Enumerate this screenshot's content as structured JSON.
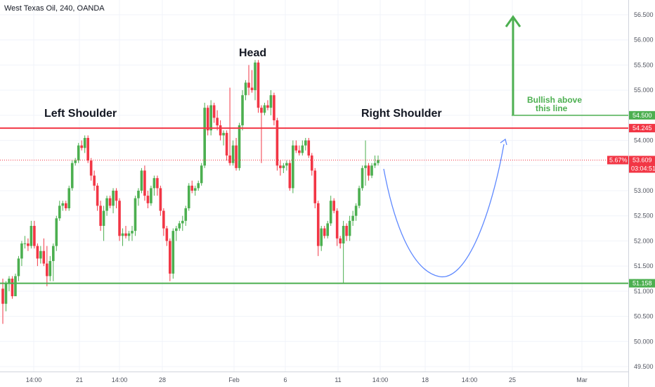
{
  "chart_data": {
    "type": "candlestick",
    "title": "West Texas Oil, 240, OANDA",
    "y_ticks": [
      "49.500",
      "50.000",
      "50.500",
      "51.000",
      "51.500",
      "52.000",
      "52.500",
      "53.000",
      "53.500",
      "54.000",
      "54.500",
      "55.000",
      "55.500",
      "56.000",
      "56.500"
    ],
    "ylim": [
      49.4,
      56.7
    ],
    "x_ticks": [
      "14:00",
      "21",
      "14:00",
      "28",
      "Feb",
      "6",
      "11",
      "14:00",
      "18",
      "14:00",
      "25",
      "Mar"
    ],
    "levels": {
      "target": {
        "value": 54.5,
        "label": "54.500",
        "color": "#4caf50"
      },
      "neckline": {
        "value": 54.245,
        "label": "54.245",
        "color": "#f23645"
      },
      "support": {
        "value": 51.158,
        "label": "51.158",
        "color": "#4caf50"
      }
    },
    "last_price": {
      "value": 53.609,
      "label": "53.609",
      "change": "5.67%",
      "countdown": "03:04:51",
      "color": "#f23645"
    },
    "annotations": {
      "left_shoulder": "Left Shoulder",
      "head": "Head",
      "right_shoulder": "Right Shoulder",
      "bullish_line1": "Bullish above",
      "bullish_line2": "this line"
    },
    "up_color": "#4caf50",
    "down_color": "#f23645",
    "series": [
      [
        51.05,
        51.25,
        50.35,
        50.75
      ],
      [
        50.75,
        51.2,
        50.6,
        51.15
      ],
      [
        51.15,
        51.3,
        51.0,
        51.25
      ],
      [
        51.25,
        51.3,
        50.85,
        50.9
      ],
      [
        50.9,
        51.35,
        50.9,
        51.3
      ],
      [
        51.3,
        51.7,
        51.2,
        51.65
      ],
      [
        51.65,
        52.0,
        51.5,
        51.95
      ],
      [
        51.95,
        52.1,
        51.85,
        51.95
      ],
      [
        51.95,
        52.05,
        51.8,
        51.9
      ],
      [
        51.9,
        52.4,
        51.85,
        52.3
      ],
      [
        52.3,
        52.4,
        51.85,
        51.9
      ],
      [
        51.9,
        51.95,
        51.5,
        51.65
      ],
      [
        51.65,
        51.9,
        51.55,
        51.8
      ],
      [
        51.8,
        52.05,
        51.5,
        51.55
      ],
      [
        51.55,
        51.9,
        51.1,
        51.3
      ],
      [
        51.3,
        51.7,
        51.2,
        51.6
      ],
      [
        51.6,
        51.95,
        51.2,
        51.9
      ],
      [
        51.9,
        52.5,
        51.8,
        52.45
      ],
      [
        52.45,
        52.8,
        52.4,
        52.7
      ],
      [
        52.7,
        52.8,
        52.6,
        52.75
      ],
      [
        52.75,
        52.8,
        52.6,
        52.65
      ],
      [
        52.65,
        53.1,
        52.6,
        53.05
      ],
      [
        53.05,
        53.6,
        53.0,
        53.55
      ],
      [
        53.55,
        53.65,
        53.5,
        53.6
      ],
      [
        53.6,
        53.95,
        53.55,
        53.9
      ],
      [
        53.9,
        54.0,
        53.8,
        53.85
      ],
      [
        53.85,
        54.1,
        53.75,
        54.05
      ],
      [
        54.05,
        54.1,
        53.55,
        53.6
      ],
      [
        53.6,
        53.65,
        53.2,
        53.3
      ],
      [
        53.3,
        53.4,
        53.0,
        53.1
      ],
      [
        53.1,
        53.15,
        52.6,
        52.7
      ],
      [
        52.7,
        52.8,
        52.2,
        52.3
      ],
      [
        52.3,
        52.7,
        52.0,
        52.6
      ],
      [
        52.6,
        52.9,
        52.5,
        52.85
      ],
      [
        52.85,
        52.9,
        52.65,
        52.7
      ],
      [
        52.7,
        53.05,
        52.55,
        53.0
      ],
      [
        53.0,
        53.05,
        52.65,
        52.8
      ],
      [
        52.8,
        52.85,
        52.0,
        52.1
      ],
      [
        52.1,
        52.25,
        51.9,
        52.15
      ],
      [
        52.15,
        52.3,
        52.05,
        52.1
      ],
      [
        52.1,
        52.2,
        52.0,
        52.15
      ],
      [
        52.15,
        52.3,
        52.0,
        52.2
      ],
      [
        52.2,
        52.9,
        52.1,
        52.85
      ],
      [
        52.85,
        53.05,
        52.7,
        53.0
      ],
      [
        53.0,
        53.45,
        52.95,
        53.4
      ],
      [
        53.4,
        53.5,
        52.8,
        52.9
      ],
      [
        52.9,
        53.0,
        52.65,
        52.75
      ],
      [
        52.75,
        53.1,
        52.7,
        53.05
      ],
      [
        53.05,
        53.3,
        52.9,
        53.25
      ],
      [
        53.25,
        53.3,
        52.9,
        53.05
      ],
      [
        53.05,
        53.1,
        52.5,
        52.6
      ],
      [
        52.6,
        52.65,
        52.1,
        52.25
      ],
      [
        52.25,
        52.3,
        51.9,
        52.0
      ],
      [
        52.0,
        52.05,
        51.2,
        51.35
      ],
      [
        51.35,
        52.25,
        51.25,
        52.2
      ],
      [
        52.2,
        52.3,
        52.0,
        52.25
      ],
      [
        52.25,
        52.4,
        52.2,
        52.35
      ],
      [
        52.35,
        52.5,
        52.2,
        52.4
      ],
      [
        52.4,
        52.7,
        52.3,
        52.65
      ],
      [
        52.65,
        53.15,
        52.6,
        53.1
      ],
      [
        53.1,
        53.2,
        52.95,
        53.0
      ],
      [
        53.0,
        53.1,
        52.9,
        53.05
      ],
      [
        53.05,
        53.2,
        53.0,
        53.15
      ],
      [
        53.15,
        53.55,
        53.1,
        53.5
      ],
      [
        53.5,
        54.75,
        53.45,
        54.65
      ],
      [
        54.65,
        54.7,
        54.1,
        54.2
      ],
      [
        54.2,
        54.8,
        54.1,
        54.7
      ],
      [
        54.7,
        54.75,
        54.35,
        54.45
      ],
      [
        54.45,
        54.6,
        54.2,
        54.3
      ],
      [
        54.3,
        54.4,
        54.0,
        54.1
      ],
      [
        54.1,
        54.2,
        53.9,
        54.15
      ],
      [
        54.15,
        54.2,
        53.6,
        53.7
      ],
      [
        53.7,
        55.05,
        53.5,
        53.55
      ],
      [
        53.55,
        54.0,
        53.5,
        53.9
      ],
      [
        53.9,
        54.05,
        53.4,
        53.45
      ],
      [
        53.45,
        54.35,
        53.4,
        54.3
      ],
      [
        54.3,
        55.0,
        54.2,
        54.9
      ],
      [
        54.9,
        55.2,
        54.8,
        55.15
      ],
      [
        55.15,
        55.5,
        54.9,
        55.05
      ],
      [
        55.05,
        55.4,
        54.95,
        55.0
      ],
      [
        55.0,
        55.6,
        54.8,
        55.55
      ],
      [
        55.55,
        55.6,
        54.55,
        54.65
      ],
      [
        54.65,
        54.7,
        53.55,
        54.55
      ],
      [
        54.55,
        54.75,
        54.5,
        54.7
      ],
      [
        54.7,
        54.8,
        54.6,
        54.65
      ],
      [
        54.65,
        55.0,
        54.5,
        54.9
      ],
      [
        54.9,
        54.95,
        54.3,
        54.4
      ],
      [
        54.4,
        54.45,
        53.4,
        53.5
      ],
      [
        53.5,
        53.6,
        53.3,
        53.45
      ],
      [
        53.45,
        53.55,
        53.35,
        53.5
      ],
      [
        53.5,
        53.6,
        53.4,
        53.55
      ],
      [
        53.55,
        53.6,
        53.0,
        53.05
      ],
      [
        53.05,
        54.0,
        52.95,
        53.9
      ],
      [
        53.9,
        54.0,
        53.75,
        53.8
      ],
      [
        53.8,
        53.9,
        53.7,
        53.75
      ],
      [
        53.75,
        54.0,
        53.7,
        53.9
      ],
      [
        53.9,
        54.05,
        53.8,
        54.0
      ],
      [
        54.0,
        54.05,
        53.65,
        53.7
      ],
      [
        53.7,
        53.75,
        53.3,
        53.4
      ],
      [
        53.4,
        53.45,
        52.65,
        52.75
      ],
      [
        52.75,
        52.8,
        51.7,
        51.9
      ],
      [
        51.9,
        52.3,
        51.8,
        52.25
      ],
      [
        52.25,
        52.3,
        52.05,
        52.1
      ],
      [
        52.1,
        52.4,
        52.05,
        52.35
      ],
      [
        52.35,
        52.9,
        52.3,
        52.8
      ],
      [
        52.8,
        52.85,
        52.55,
        52.6
      ],
      [
        52.6,
        52.65,
        51.9,
        52.05
      ],
      [
        52.05,
        52.1,
        51.85,
        51.95
      ],
      [
        51.95,
        52.4,
        51.15,
        52.3
      ],
      [
        52.3,
        52.35,
        52.0,
        52.1
      ],
      [
        52.1,
        52.5,
        52.0,
        52.4
      ],
      [
        52.4,
        52.6,
        52.3,
        52.5
      ],
      [
        52.5,
        52.75,
        52.4,
        52.7
      ],
      [
        52.7,
        53.1,
        52.65,
        53.05
      ],
      [
        53.05,
        53.5,
        53.0,
        53.45
      ],
      [
        53.45,
        54.0,
        53.1,
        53.5
      ],
      [
        53.5,
        53.55,
        53.2,
        53.3
      ],
      [
        53.3,
        53.55,
        53.25,
        53.5
      ],
      [
        53.5,
        53.7,
        53.45,
        53.55
      ],
      [
        53.55,
        53.7,
        53.5,
        53.61
      ]
    ]
  }
}
